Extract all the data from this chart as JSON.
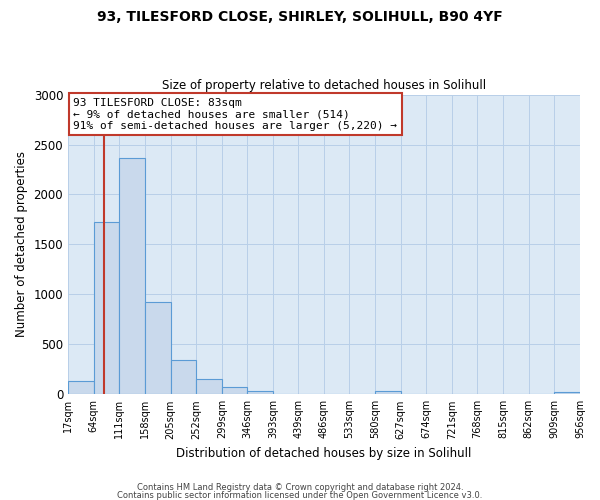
{
  "title1": "93, TILESFORD CLOSE, SHIRLEY, SOLIHULL, B90 4YF",
  "title2": "Size of property relative to detached houses in Solihull",
  "xlabel": "Distribution of detached houses by size in Solihull",
  "ylabel": "Number of detached properties",
  "bar_edges": [
    17,
    64,
    111,
    158,
    205,
    252,
    299,
    346,
    393,
    439,
    486,
    533,
    580,
    627,
    674,
    721,
    768,
    815,
    862,
    909,
    956
  ],
  "bar_heights": [
    130,
    1720,
    2370,
    920,
    345,
    155,
    75,
    35,
    0,
    0,
    0,
    0,
    35,
    0,
    0,
    0,
    0,
    0,
    0,
    20
  ],
  "bar_color": "#c9d9ec",
  "bar_edge_color": "#5b9bd5",
  "vline_x": 83,
  "vline_color": "#c0392b",
  "annotation_title": "93 TILESFORD CLOSE: 83sqm",
  "annotation_line1": "← 9% of detached houses are smaller (514)",
  "annotation_line2": "91% of semi-detached houses are larger (5,220) →",
  "annotation_box_color": "#ffffff",
  "annotation_box_edge_color": "#c0392b",
  "ylim": [
    0,
    3000
  ],
  "yticks": [
    0,
    500,
    1000,
    1500,
    2000,
    2500,
    3000
  ],
  "footer1": "Contains HM Land Registry data © Crown copyright and database right 2024.",
  "footer2": "Contains public sector information licensed under the Open Government Licence v3.0."
}
